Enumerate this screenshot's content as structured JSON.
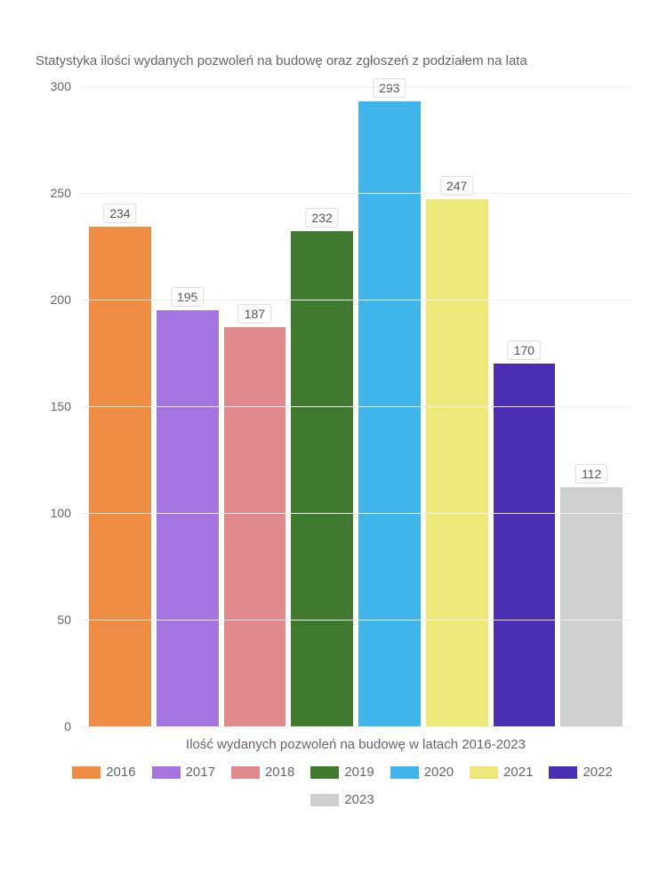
{
  "chart": {
    "type": "bar",
    "title": "Statystyka ilości wydanych pozwoleń na budowę oraz zgłoszeń z podziałem na lata",
    "xlabel": "Ilość wydanych pozwoleń na budowę w latach 2016-2023",
    "ylim_max": 300,
    "ytick_step": 50,
    "yticks": [
      0,
      50,
      100,
      150,
      200,
      250,
      300
    ],
    "background_color": "#ffffff",
    "grid_color": "#eeeeee",
    "title_fontsize": 15,
    "label_fontsize": 15,
    "tick_fontsize": 14,
    "series": [
      {
        "year": "2016",
        "value": 234,
        "color": "#ed8c42"
      },
      {
        "year": "2017",
        "value": 195,
        "color": "#a474e0"
      },
      {
        "year": "2018",
        "value": 187,
        "color": "#e08a8f"
      },
      {
        "year": "2019",
        "value": 232,
        "color": "#3f7a2f"
      },
      {
        "year": "2020",
        "value": 293,
        "color": "#3fb5eb"
      },
      {
        "year": "2021",
        "value": 247,
        "color": "#ece87a"
      },
      {
        "year": "2022",
        "value": 170,
        "color": "#4a2fb5"
      },
      {
        "year": "2023",
        "value": 112,
        "color": "#cfcfcf"
      }
    ]
  }
}
